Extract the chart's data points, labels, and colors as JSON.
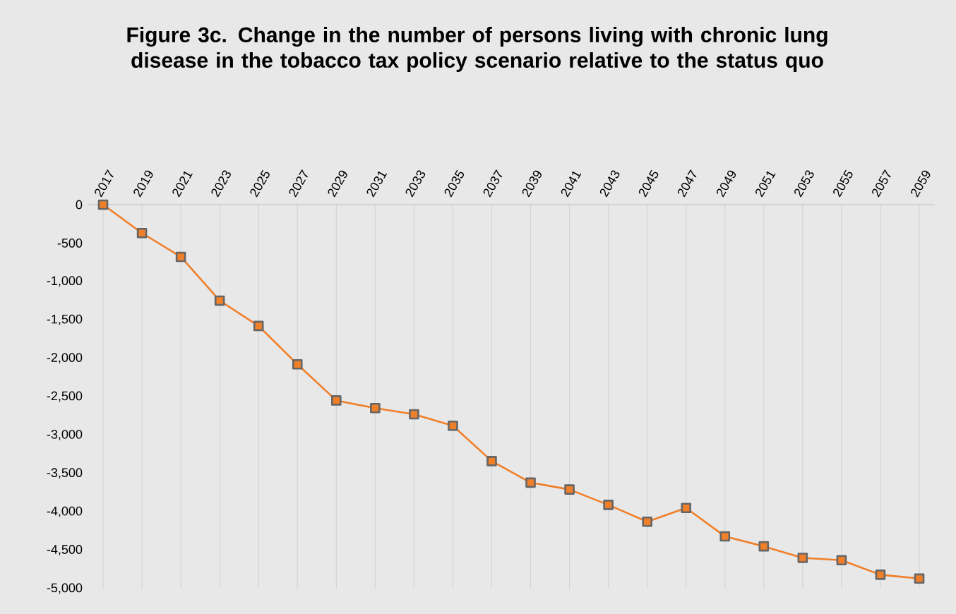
{
  "chart_data": {
    "type": "line",
    "title": "Figure 3c. Change in the number of persons living with chronic lung disease in the tobacco tax policy scenario relative to the status quo",
    "categories": [
      "2017",
      "2019",
      "2021",
      "2023",
      "2025",
      "2027",
      "2029",
      "2031",
      "2033",
      "2035",
      "2037",
      "2039",
      "2041",
      "2043",
      "2045",
      "2047",
      "2049",
      "2051",
      "2053",
      "2055",
      "2057",
      "2059"
    ],
    "values": [
      0,
      -370,
      -680,
      -1250,
      -1580,
      -2080,
      -2550,
      -2650,
      -2730,
      -2880,
      -3340,
      -3620,
      -3710,
      -3910,
      -4130,
      -3950,
      -4320,
      -4450,
      -4600,
      -4630,
      -4820,
      -4870
    ],
    "color": "#f07f2a",
    "ylim": [
      -5000,
      0
    ],
    "yticks": [
      {
        "value": 0,
        "label": "0"
      },
      {
        "value": -500,
        "label": "-500"
      },
      {
        "value": -1000,
        "label": "-1,000"
      },
      {
        "value": -1500,
        "label": "-1,500"
      },
      {
        "value": -2000,
        "label": "-2,000"
      },
      {
        "value": -2500,
        "label": "-2,500"
      },
      {
        "value": -3000,
        "label": "-3,000"
      },
      {
        "value": -3500,
        "label": "-3,500"
      },
      {
        "value": -4000,
        "label": "-4,000"
      },
      {
        "value": -4500,
        "label": "-4,500"
      },
      {
        "value": -5000,
        "label": "-5,000"
      }
    ],
    "grid": "x",
    "marker": "square",
    "line_style": "solid"
  }
}
